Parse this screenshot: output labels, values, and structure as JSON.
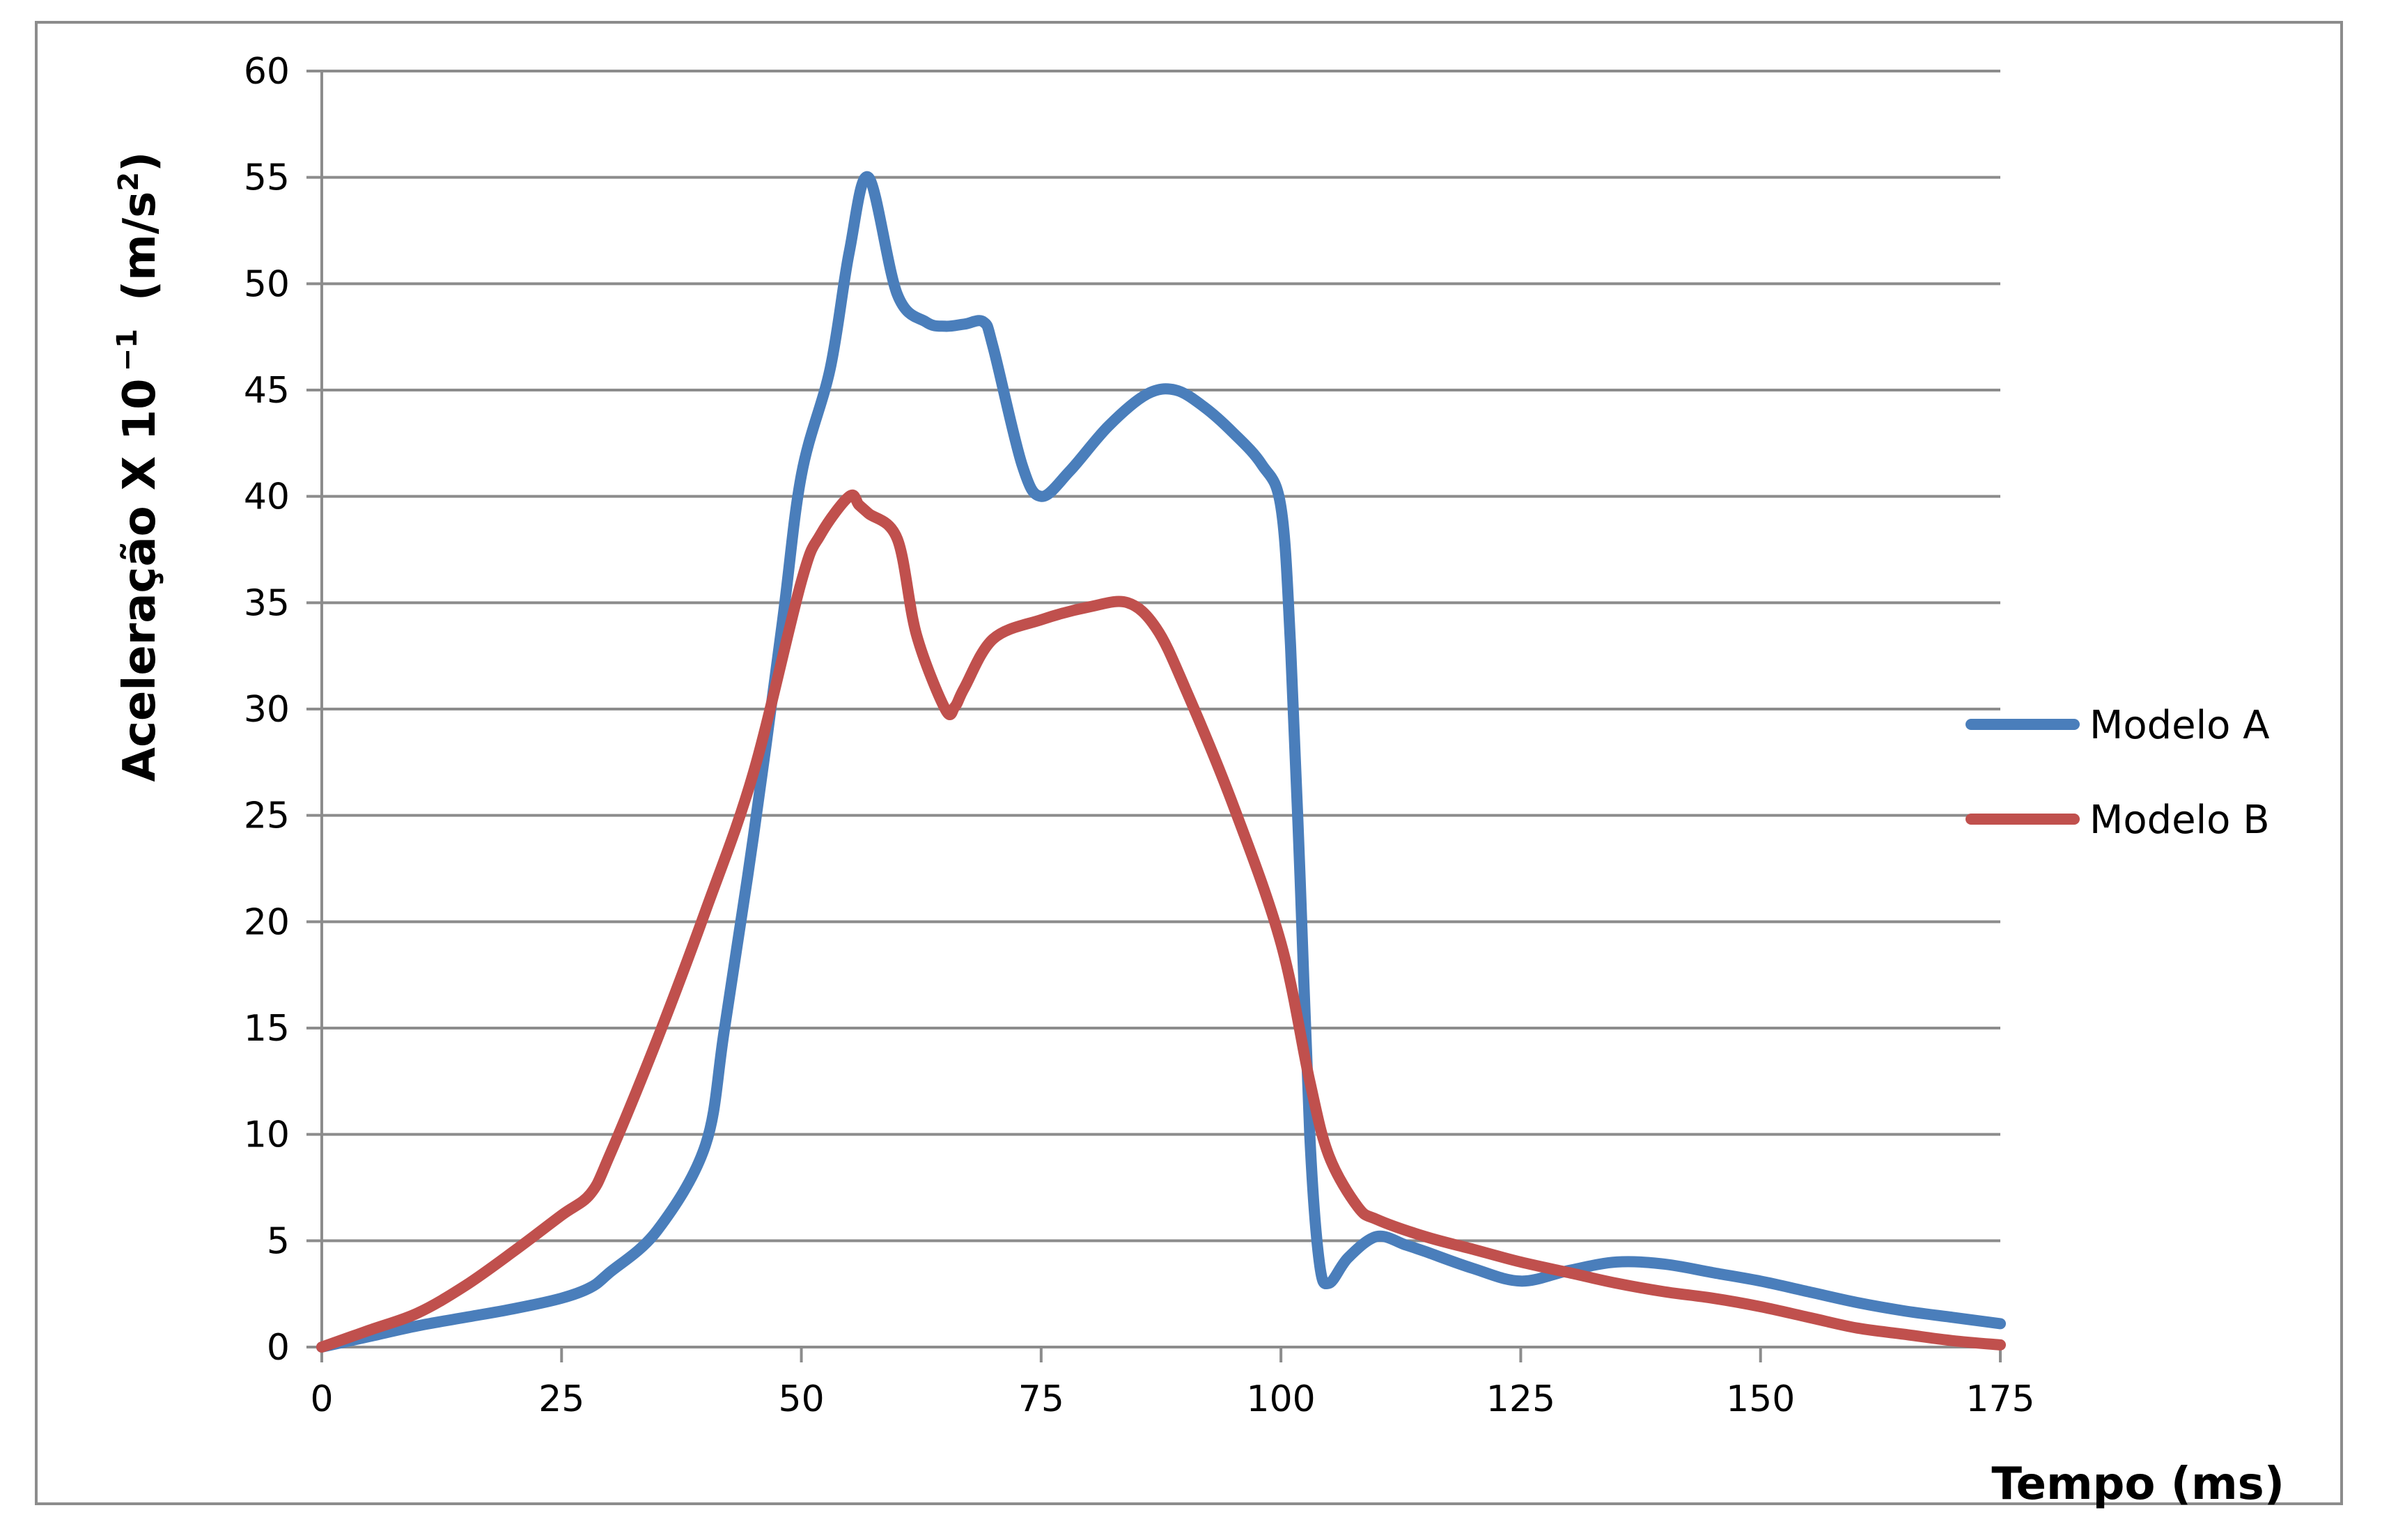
{
  "chart_data": {
    "type": "line",
    "title": "",
    "xlabel": "Tempo (ms)",
    "ylabel_main": "Aceleração X 10",
    "ylabel_exp": "−1",
    "ylabel_units": "(m/s",
    "ylabel_units_sup": "2",
    "ylabel_units_close": ")",
    "xlim": [
      0,
      175
    ],
    "ylim": [
      0,
      60
    ],
    "xticks": [
      0,
      25,
      50,
      75,
      100,
      125,
      150,
      175
    ],
    "yticks": [
      0,
      5,
      10,
      15,
      20,
      25,
      30,
      35,
      40,
      45,
      50,
      55,
      60
    ],
    "grid": "horizontal",
    "legend_position": "right",
    "series": [
      {
        "name": "Modelo A",
        "color": "#4a7ebb",
        "x": [
          0,
          5,
          10,
          15,
          20,
          25,
          28,
          30,
          35,
          40,
          42,
          45,
          48,
          50,
          53,
          55,
          57,
          60,
          63,
          65,
          67,
          69,
          70,
          73,
          75,
          78,
          82,
          86,
          89,
          92,
          95,
          98,
          100,
          101,
          102,
          103,
          104,
          105,
          107,
          110,
          113,
          115,
          120,
          125,
          130,
          135,
          140,
          145,
          150,
          155,
          160,
          165,
          170,
          175
        ],
        "y": [
          0,
          0.5,
          1.0,
          1.4,
          1.8,
          2.3,
          2.8,
          3.5,
          5.5,
          9.5,
          15,
          24,
          34,
          41,
          46,
          51.5,
          55,
          49.5,
          48.2,
          48,
          48.1,
          48.2,
          47,
          41.5,
          40,
          41.2,
          43.3,
          44.8,
          45,
          44.2,
          43,
          41.5,
          39.5,
          33,
          22,
          10,
          4,
          3,
          4.2,
          5.2,
          4.8,
          4.5,
          3.7,
          3.1,
          3.6,
          4.0,
          3.9,
          3.5,
          3.1,
          2.6,
          2.1,
          1.7,
          1.4,
          1.1
        ]
      },
      {
        "name": "Modelo B",
        "color": "#c0504d",
        "x": [
          0,
          5,
          10,
          15,
          20,
          25,
          28,
          30,
          35,
          40,
          45,
          50,
          52,
          55,
          56,
          57,
          60,
          62,
          65,
          66,
          67,
          70,
          75,
          80,
          84,
          87,
          90,
          95,
          100,
          103,
          105,
          108,
          110,
          115,
          120,
          125,
          130,
          135,
          140,
          145,
          150,
          155,
          160,
          165,
          170,
          175
        ],
        "y": [
          0,
          0.8,
          1.6,
          2.9,
          4.5,
          6.2,
          7.2,
          9.0,
          14.5,
          20.5,
          27,
          36,
          38.2,
          40,
          39.6,
          39.2,
          38,
          33.5,
          30,
          30.1,
          31,
          33.3,
          34.2,
          34.8,
          35,
          33.8,
          31,
          25.5,
          19,
          12.5,
          9,
          6.6,
          6.0,
          5.2,
          4.6,
          4.0,
          3.5,
          3.0,
          2.6,
          2.3,
          1.9,
          1.4,
          0.9,
          0.6,
          0.3,
          0.1
        ]
      }
    ]
  }
}
